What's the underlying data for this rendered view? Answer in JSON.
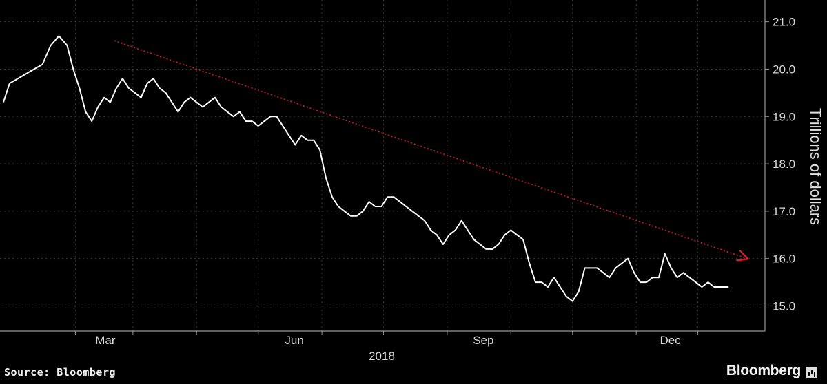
{
  "chart_data": {
    "type": "line",
    "title": "",
    "xlabel": "2018",
    "ylabel": "Trillions of dollars",
    "ylim": [
      14.6,
      21.3
    ],
    "y_ticks": [
      21.0,
      20.0,
      19.0,
      18.0,
      17.0,
      16.0,
      15.0
    ],
    "y_tick_labels": [
      "21.0",
      "20.0",
      "19.0",
      "18.0",
      "17.0",
      "16.0",
      "15.0"
    ],
    "x_tick_labels": [
      "Mar",
      "Jun",
      "Sep",
      "Dec"
    ],
    "x_label_year": "2018",
    "grid": true,
    "colors": {
      "line": "#ffffff",
      "trend": "#d0202a",
      "grid": "#3a3a3a",
      "background": "#000000"
    },
    "series": [
      {
        "x": [
          "2018-01-01",
          "2018-01-04",
          "2018-01-08",
          "2018-01-12",
          "2018-01-16",
          "2018-01-20",
          "2018-01-24",
          "2018-01-28",
          "2018-02-01",
          "2018-02-04",
          "2018-02-07",
          "2018-02-10",
          "2018-02-13",
          "2018-02-16",
          "2018-02-19",
          "2018-02-22",
          "2018-02-25",
          "2018-02-28",
          "2018-03-03",
          "2018-03-06",
          "2018-03-09",
          "2018-03-12",
          "2018-03-15",
          "2018-03-18",
          "2018-03-21",
          "2018-03-24",
          "2018-03-27",
          "2018-03-30",
          "2018-04-02",
          "2018-04-05",
          "2018-04-08",
          "2018-04-11",
          "2018-04-14",
          "2018-04-17",
          "2018-04-20",
          "2018-04-23",
          "2018-04-26",
          "2018-04-29",
          "2018-05-02",
          "2018-05-05",
          "2018-05-08",
          "2018-05-11",
          "2018-05-14",
          "2018-05-17",
          "2018-05-20",
          "2018-05-23",
          "2018-05-26",
          "2018-05-29",
          "2018-06-01",
          "2018-06-04",
          "2018-06-07",
          "2018-06-10",
          "2018-06-13",
          "2018-06-16",
          "2018-06-19",
          "2018-06-22",
          "2018-06-25",
          "2018-06-28",
          "2018-07-01",
          "2018-07-04",
          "2018-07-07",
          "2018-07-10",
          "2018-07-13",
          "2018-07-16",
          "2018-07-19",
          "2018-07-22",
          "2018-07-25",
          "2018-07-28",
          "2018-07-31",
          "2018-08-03",
          "2018-08-06",
          "2018-08-09",
          "2018-08-12",
          "2018-08-15",
          "2018-08-18",
          "2018-08-21",
          "2018-08-24",
          "2018-08-27",
          "2018-08-30",
          "2018-09-02",
          "2018-09-05",
          "2018-09-08",
          "2018-09-11",
          "2018-09-14",
          "2018-09-17",
          "2018-09-20",
          "2018-09-23",
          "2018-09-26",
          "2018-09-29",
          "2018-10-02",
          "2018-10-05",
          "2018-10-08",
          "2018-10-11",
          "2018-10-14",
          "2018-10-17",
          "2018-10-20",
          "2018-10-23",
          "2018-10-26",
          "2018-10-29",
          "2018-11-01",
          "2018-11-04",
          "2018-11-07",
          "2018-11-10",
          "2018-11-13",
          "2018-11-16",
          "2018-11-19",
          "2018-11-22",
          "2018-11-25",
          "2018-11-28",
          "2018-12-01",
          "2018-12-04",
          "2018-12-07",
          "2018-12-10",
          "2018-12-13",
          "2018-12-16",
          "2018-12-20"
        ],
        "values": [
          19.3,
          19.7,
          19.8,
          19.9,
          20.0,
          20.1,
          20.5,
          20.7,
          20.5,
          20.0,
          19.6,
          19.1,
          18.9,
          19.2,
          19.4,
          19.3,
          19.6,
          19.8,
          19.6,
          19.5,
          19.4,
          19.7,
          19.8,
          19.6,
          19.5,
          19.3,
          19.1,
          19.3,
          19.4,
          19.3,
          19.2,
          19.3,
          19.4,
          19.2,
          19.1,
          19.0,
          19.1,
          18.9,
          18.9,
          18.8,
          18.9,
          19.0,
          19.0,
          18.8,
          18.6,
          18.4,
          18.6,
          18.5,
          18.5,
          18.3,
          17.7,
          17.3,
          17.1,
          17.0,
          16.9,
          16.9,
          17.0,
          17.2,
          17.1,
          17.1,
          17.3,
          17.3,
          17.2,
          17.1,
          17.0,
          16.9,
          16.8,
          16.6,
          16.5,
          16.3,
          16.5,
          16.6,
          16.8,
          16.6,
          16.4,
          16.3,
          16.2,
          16.2,
          16.3,
          16.5,
          16.6,
          16.5,
          16.4,
          15.9,
          15.5,
          15.5,
          15.4,
          15.6,
          15.4,
          15.2,
          15.1,
          15.3,
          15.8,
          15.8,
          15.8,
          15.7,
          15.6,
          15.8,
          15.9,
          16.0,
          15.7,
          15.5,
          15.5,
          15.6,
          15.6,
          16.1,
          15.8,
          15.6,
          15.7,
          15.6,
          15.5,
          15.4,
          15.5,
          15.4,
          15.4,
          15.4
        ]
      }
    ],
    "trend_arrow": {
      "from": [
        "2018-02-24",
        20.6
      ],
      "to": [
        "2018-12-29",
        16.0
      ]
    }
  },
  "footer": {
    "source": "Source: Bloomberg",
    "brand": "Bloomberg"
  }
}
